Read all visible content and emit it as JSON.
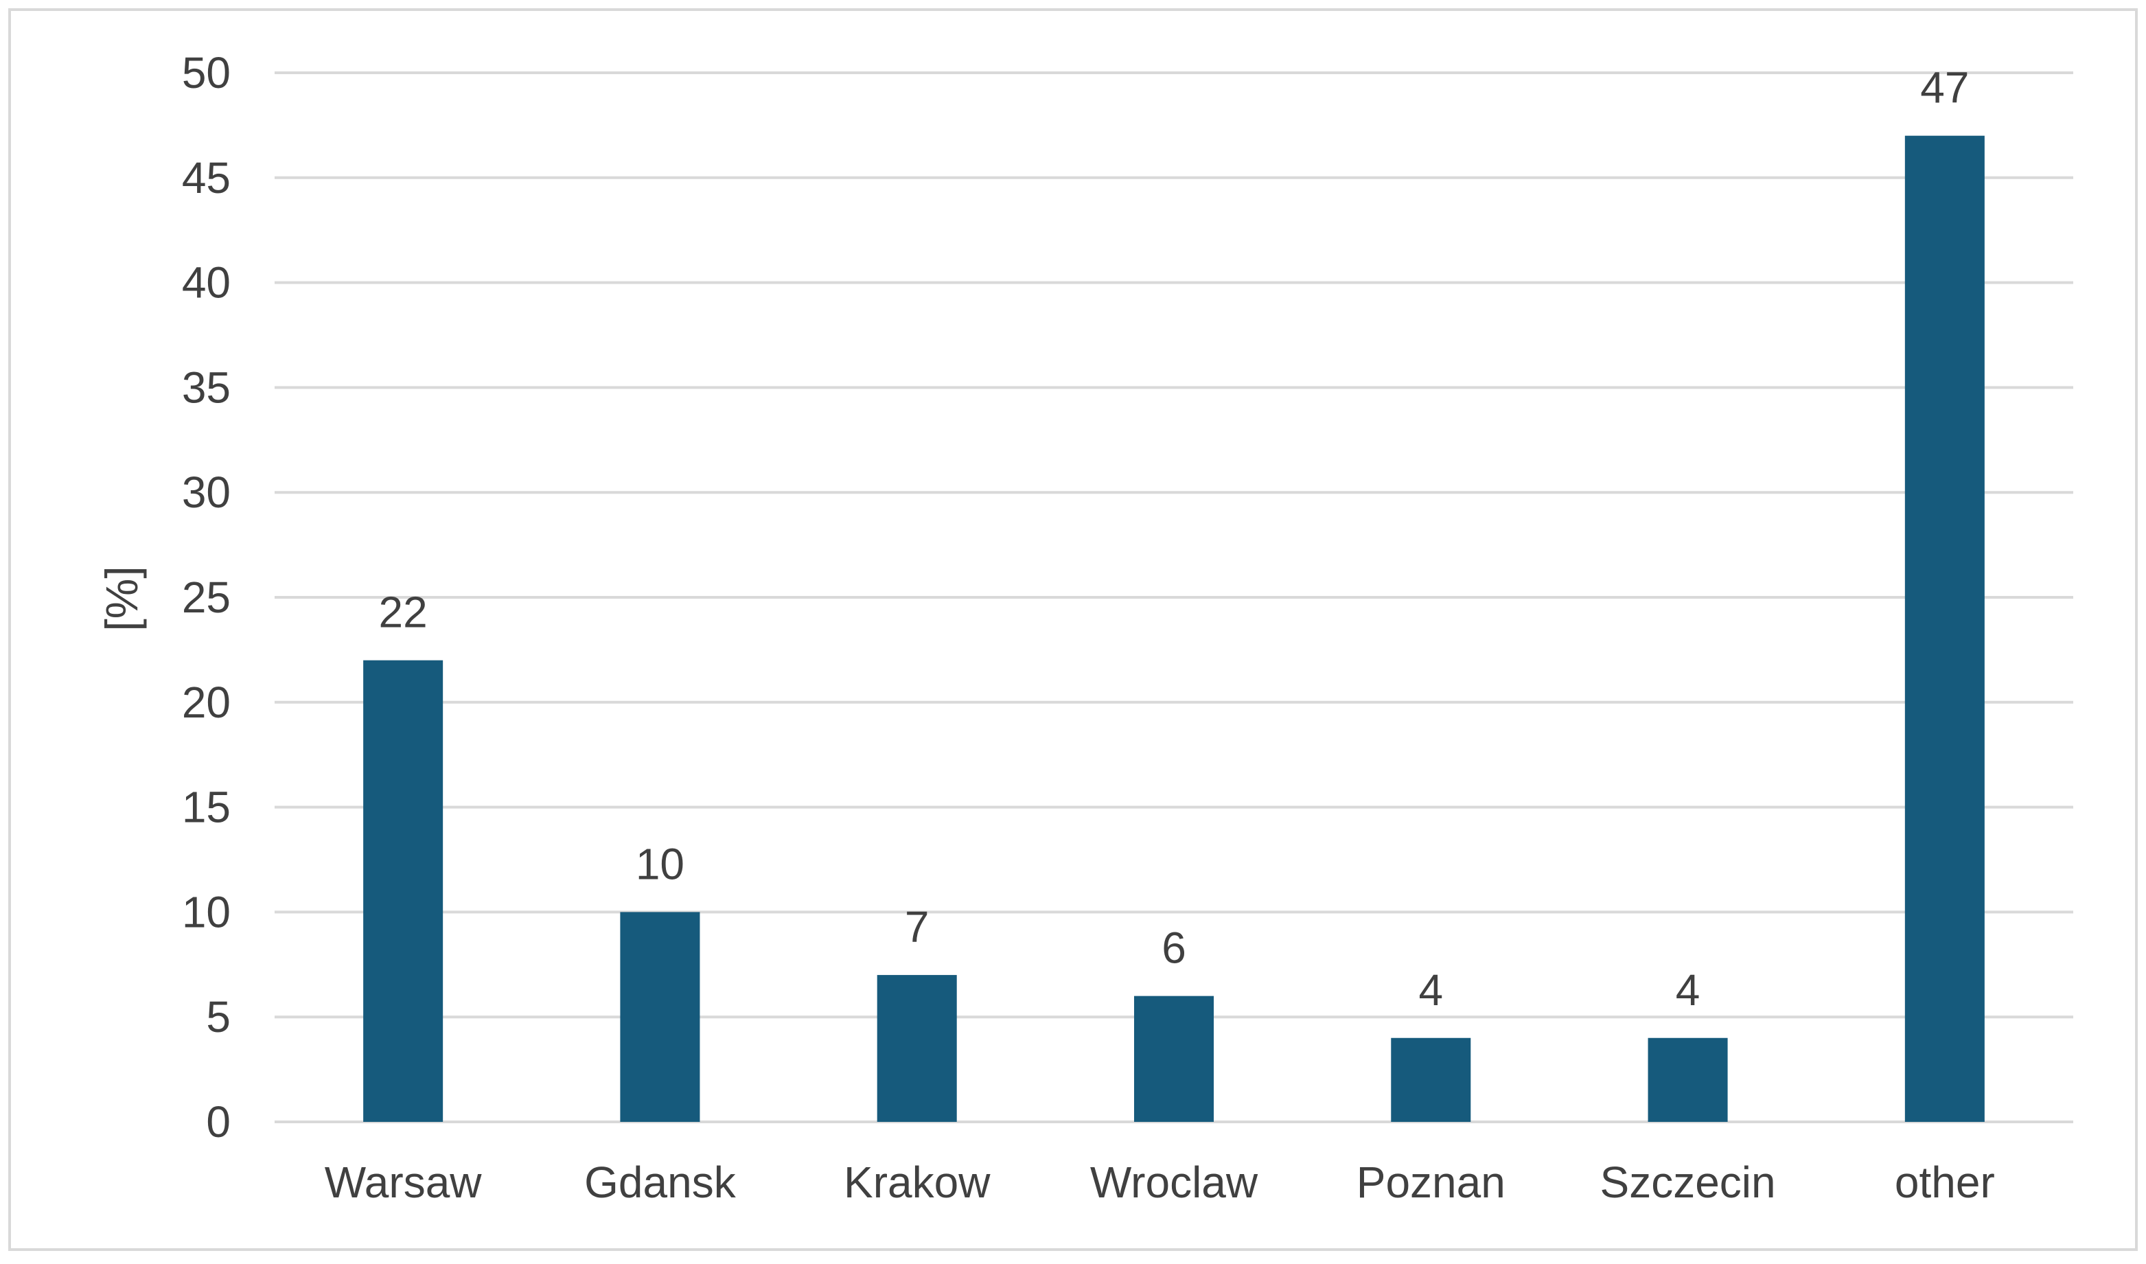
{
  "chart_data": {
    "type": "bar",
    "categories": [
      "Warsaw",
      "Gdansk",
      "Krakow",
      "Wroclaw",
      "Poznan",
      "Szczecin",
      "other"
    ],
    "values": [
      22,
      10,
      7,
      6,
      4,
      4,
      47
    ],
    "data_labels": [
      "22",
      "10",
      "7",
      "6",
      "4",
      "4",
      "47"
    ],
    "title": "",
    "xlabel": "",
    "ylabel": "[%]",
    "ylim": [
      0,
      50
    ],
    "yticks": [
      0,
      5,
      10,
      15,
      20,
      25,
      30,
      35,
      40,
      45,
      50
    ],
    "ytick_labels": [
      "0",
      "5",
      "10",
      "15",
      "20",
      "25",
      "30",
      "35",
      "40",
      "45",
      "50"
    ],
    "grid": true,
    "legend": "none",
    "colors": {
      "bar": "#165a7c",
      "grid": "#d9d9d9",
      "text": "#404040",
      "frame": "#d9d9d9"
    }
  }
}
